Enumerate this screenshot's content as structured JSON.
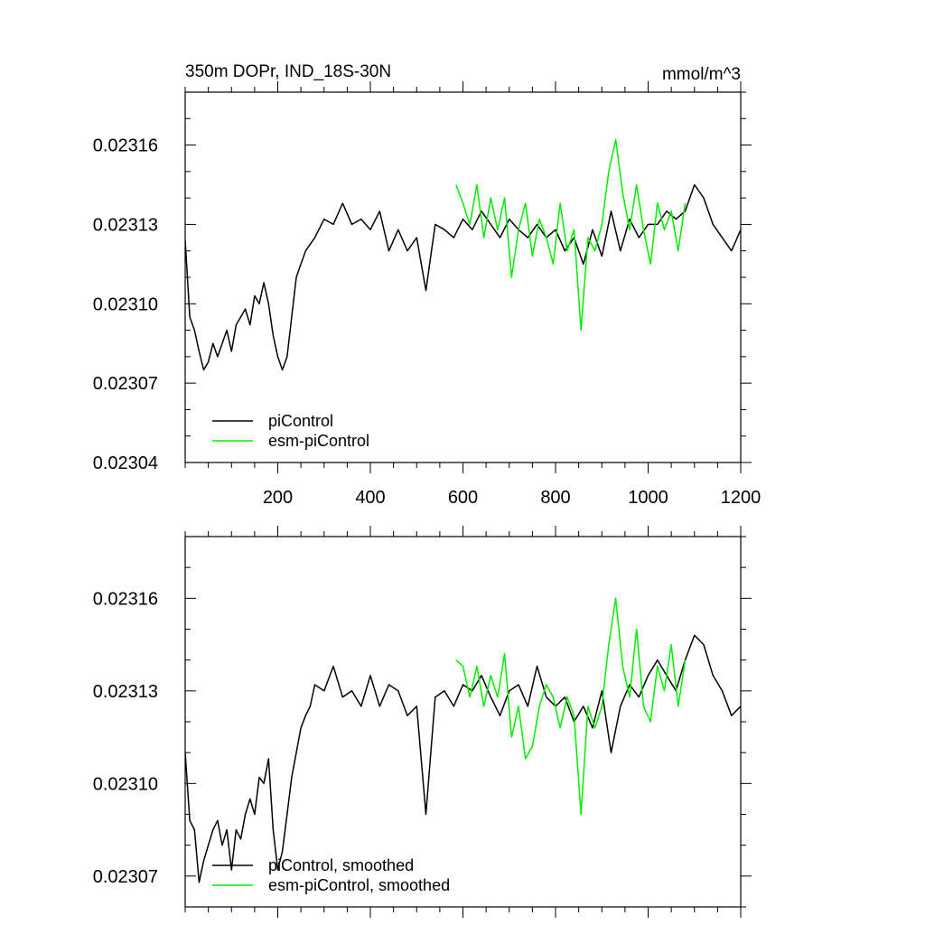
{
  "chart_data": [
    {
      "type": "line",
      "title": "350m DOPr, IND_18S-30N",
      "units": "mmol/m^3",
      "xlim": [
        0,
        1200
      ],
      "ylim": [
        0.02304,
        0.02318
      ],
      "xticks": [
        200,
        400,
        600,
        800,
        1000,
        1200
      ],
      "xtick_labels": [
        "200",
        "400",
        "600",
        "800",
        "1000",
        "1200"
      ],
      "yticks": [
        0.02304,
        0.02307,
        0.0231,
        0.02313,
        0.02316
      ],
      "ytick_labels": [
        "0.02304",
        "0.02307",
        "0.02310",
        "0.02313",
        "0.02316"
      ],
      "legend_position": "bottom-left",
      "series": [
        {
          "name": "piControl",
          "color": "#000000",
          "x": [
            0,
            10,
            20,
            30,
            40,
            50,
            60,
            70,
            80,
            90,
            100,
            110,
            120,
            130,
            140,
            150,
            160,
            170,
            180,
            190,
            200,
            210,
            220,
            230,
            240,
            250,
            260,
            280,
            300,
            320,
            340,
            360,
            380,
            400,
            420,
            440,
            460,
            480,
            500,
            520,
            540,
            560,
            580,
            600,
            620,
            640,
            660,
            680,
            700,
            720,
            740,
            760,
            780,
            800,
            820,
            840,
            860,
            880,
            900,
            920,
            940,
            960,
            980,
            1000,
            1020,
            1040,
            1060,
            1080,
            1100,
            1120,
            1140,
            1160,
            1180,
            1200
          ],
          "values": [
            0.023124,
            0.023095,
            0.02309,
            0.023082,
            0.023075,
            0.023078,
            0.023085,
            0.02308,
            0.023085,
            0.02309,
            0.023082,
            0.023092,
            0.023095,
            0.023098,
            0.023092,
            0.023103,
            0.0231,
            0.023108,
            0.0231,
            0.023088,
            0.02308,
            0.023075,
            0.02308,
            0.023095,
            0.02311,
            0.023115,
            0.02312,
            0.023125,
            0.023132,
            0.02313,
            0.023138,
            0.02313,
            0.023132,
            0.023128,
            0.023135,
            0.02312,
            0.023128,
            0.02312,
            0.023125,
            0.023105,
            0.02313,
            0.023128,
            0.023125,
            0.023132,
            0.023128,
            0.023135,
            0.02313,
            0.023125,
            0.023132,
            0.023128,
            0.023125,
            0.02313,
            0.023125,
            0.023128,
            0.02312,
            0.023125,
            0.023115,
            0.023128,
            0.023118,
            0.023135,
            0.02312,
            0.023132,
            0.023125,
            0.02313,
            0.02313,
            0.023135,
            0.023132,
            0.023135,
            0.023145,
            0.02314,
            0.02313,
            0.023125,
            0.02312,
            0.023128
          ]
        },
        {
          "name": "esm-piControl",
          "color": "#00ee00",
          "x": [
            585,
            600,
            615,
            630,
            645,
            660,
            675,
            690,
            705,
            720,
            735,
            750,
            765,
            780,
            795,
            810,
            825,
            840,
            855,
            870,
            885,
            900,
            915,
            930,
            945,
            960,
            975,
            990,
            1005,
            1020,
            1035,
            1050,
            1065,
            1080
          ],
          "values": [
            0.023145,
            0.023138,
            0.02313,
            0.023145,
            0.023125,
            0.02314,
            0.023128,
            0.02314,
            0.02311,
            0.023128,
            0.023138,
            0.023118,
            0.023132,
            0.023125,
            0.023115,
            0.023138,
            0.02312,
            0.023128,
            0.02309,
            0.023125,
            0.02312,
            0.02313,
            0.02315,
            0.023162,
            0.023142,
            0.023128,
            0.023145,
            0.023128,
            0.023115,
            0.023138,
            0.023128,
            0.023135,
            0.02312,
            0.023138
          ]
        }
      ]
    },
    {
      "type": "line",
      "xlim": [
        0,
        1200
      ],
      "ylim": [
        0.02306,
        0.02318
      ],
      "xticks": [
        200,
        400,
        600,
        800,
        1000,
        1200
      ],
      "yticks": [
        0.02307,
        0.0231,
        0.02313,
        0.02316
      ],
      "ytick_labels": [
        "0.02307",
        "0.02310",
        "0.02313",
        "0.02316"
      ],
      "legend_position": "bottom-left",
      "series": [
        {
          "name": "piControl, smoothed",
          "color": "#000000",
          "x": [
            0,
            10,
            20,
            30,
            40,
            50,
            60,
            70,
            80,
            90,
            100,
            110,
            120,
            130,
            140,
            150,
            160,
            170,
            180,
            190,
            200,
            210,
            220,
            230,
            240,
            250,
            260,
            270,
            280,
            300,
            320,
            340,
            360,
            380,
            400,
            420,
            440,
            460,
            480,
            500,
            520,
            540,
            560,
            580,
            600,
            620,
            640,
            660,
            680,
            700,
            720,
            740,
            760,
            780,
            800,
            820,
            840,
            860,
            880,
            900,
            920,
            940,
            960,
            980,
            1000,
            1020,
            1040,
            1060,
            1080,
            1100,
            1120,
            1140,
            1160,
            1180,
            1200
          ],
          "values": [
            0.02311,
            0.023088,
            0.023085,
            0.023068,
            0.023075,
            0.02308,
            0.023085,
            0.023088,
            0.02308,
            0.023085,
            0.023072,
            0.023085,
            0.023082,
            0.02309,
            0.023095,
            0.02309,
            0.023102,
            0.0231,
            0.023108,
            0.023085,
            0.023072,
            0.023078,
            0.02309,
            0.023102,
            0.02311,
            0.023118,
            0.023122,
            0.023125,
            0.023132,
            0.02313,
            0.023138,
            0.023128,
            0.02313,
            0.023125,
            0.023135,
            0.023125,
            0.023132,
            0.02313,
            0.023122,
            0.023125,
            0.02309,
            0.023128,
            0.02313,
            0.023125,
            0.023132,
            0.02313,
            0.023135,
            0.023128,
            0.023122,
            0.02313,
            0.023132,
            0.023125,
            0.023138,
            0.023128,
            0.023125,
            0.023128,
            0.02312,
            0.023125,
            0.023118,
            0.02313,
            0.02311,
            0.023125,
            0.023132,
            0.023128,
            0.023135,
            0.02314,
            0.023135,
            0.02313,
            0.02314,
            0.023148,
            0.023145,
            0.023135,
            0.02313,
            0.023122,
            0.023125
          ]
        },
        {
          "name": "esm-piControl, smoothed",
          "color": "#00ee00",
          "x": [
            585,
            600,
            615,
            630,
            645,
            660,
            675,
            690,
            705,
            720,
            735,
            750,
            765,
            780,
            795,
            810,
            825,
            840,
            855,
            870,
            885,
            900,
            915,
            930,
            945,
            960,
            975,
            990,
            1005,
            1020,
            1035,
            1050,
            1065,
            1080
          ],
          "values": [
            0.02314,
            0.023138,
            0.023128,
            0.023138,
            0.023125,
            0.023135,
            0.023128,
            0.023142,
            0.023115,
            0.023125,
            0.023108,
            0.023112,
            0.023125,
            0.023132,
            0.023128,
            0.023118,
            0.023128,
            0.023122,
            0.02309,
            0.023125,
            0.023118,
            0.023125,
            0.023145,
            0.02316,
            0.023138,
            0.023128,
            0.02315,
            0.023125,
            0.02312,
            0.023138,
            0.02313,
            0.023145,
            0.023125,
            0.02314
          ]
        }
      ]
    }
  ]
}
